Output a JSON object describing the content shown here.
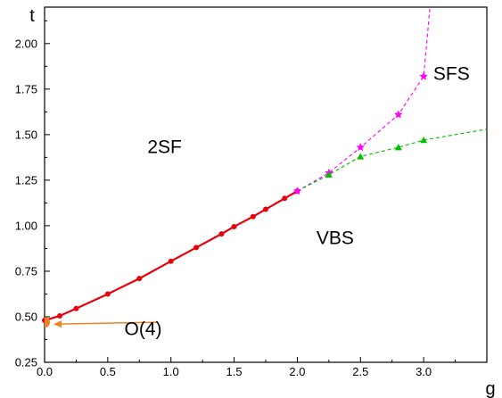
{
  "chart_data": {
    "type": "scatter",
    "xlabel": "g",
    "ylabel": "t",
    "xlim": [
      0.0,
      3.5
    ],
    "ylim": [
      0.25,
      2.2
    ],
    "xticks": [
      "0.0",
      "0.5",
      "1.0",
      "1.5",
      "2.0",
      "2.5",
      "3.0"
    ],
    "yticks": [
      "0.25",
      "0.50",
      "0.75",
      "1.00",
      "1.25",
      "1.50",
      "1.75",
      "2.00"
    ],
    "xtick_values": [
      0.0,
      0.5,
      1.0,
      1.5,
      2.0,
      2.5,
      3.0
    ],
    "ytick_values": [
      0.25,
      0.5,
      0.75,
      1.0,
      1.25,
      1.5,
      1.75,
      2.0
    ],
    "grid": false,
    "series": [
      {
        "color": "#e8000b",
        "marker": "circle",
        "line": "solid",
        "x": [
          0.0,
          0.12,
          0.25,
          0.5,
          0.75,
          1.0,
          1.2,
          1.4,
          1.5,
          1.65,
          1.75,
          1.9,
          2.0
        ],
        "y": [
          0.48,
          0.505,
          0.545,
          0.625,
          0.71,
          0.805,
          0.88,
          0.955,
          0.995,
          1.05,
          1.09,
          1.15,
          1.19
        ]
      },
      {
        "color": "#ff00ff",
        "marker": "star",
        "line": "dashed",
        "x": [
          2.0,
          2.25,
          2.5,
          2.8,
          3.0,
          3.05
        ],
        "y": [
          1.19,
          1.29,
          1.43,
          1.61,
          1.82,
          2.2
        ],
        "markers_visible": [
          true,
          true,
          true,
          true,
          true,
          false
        ]
      },
      {
        "color": "#00c000",
        "marker": "triangle",
        "line": "dashed",
        "x": [
          2.0,
          2.25,
          2.5,
          2.8,
          3.0,
          3.5
        ],
        "y": [
          1.19,
          1.28,
          1.38,
          1.43,
          1.47,
          1.53
        ],
        "markers_visible": [
          false,
          true,
          true,
          true,
          true,
          false
        ]
      }
    ],
    "annotations": [
      {
        "text": "2SF",
        "x": 0.95,
        "y": 1.4
      },
      {
        "text": "SFS",
        "x": 3.22,
        "y": 1.8
      },
      {
        "text": "VBS",
        "x": 2.3,
        "y": 0.9
      },
      {
        "text": "O(4)",
        "x": 0.78,
        "y": 0.4
      }
    ],
    "arrow": {
      "color": "#f08020",
      "from": [
        0.9,
        0.47
      ],
      "to": [
        0.07,
        0.46
      ]
    },
    "highlight_point": {
      "color": "#f08020",
      "x": 0.0,
      "y": 0.47
    }
  }
}
